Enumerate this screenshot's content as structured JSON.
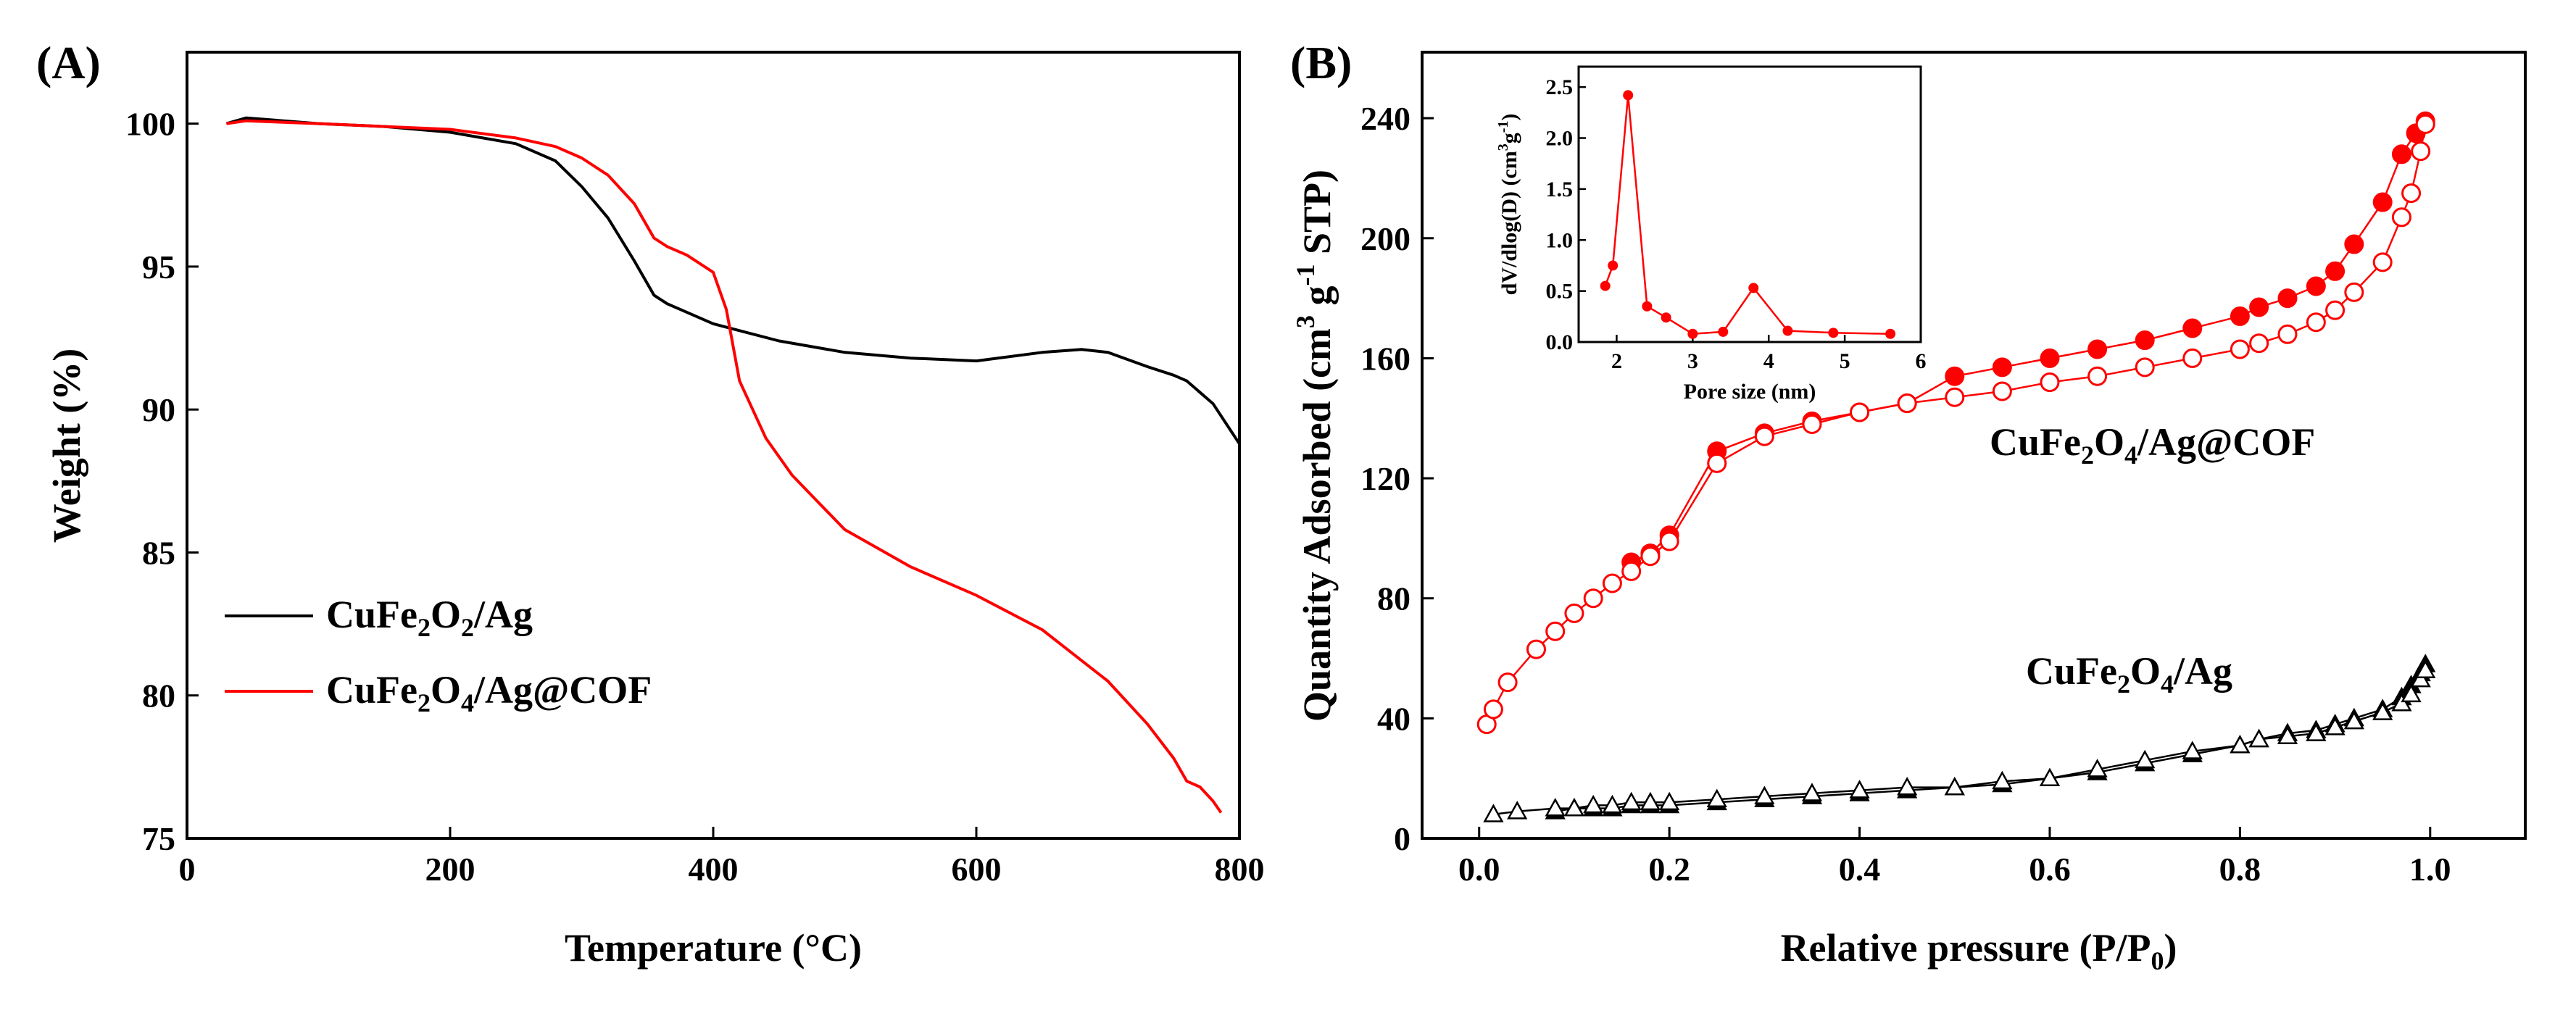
{
  "chart_data": [
    {
      "panel": "(A)",
      "type": "line",
      "xlabel": "Temperature (°C)",
      "ylabel": "Weight (%)",
      "xlim": [
        0,
        800
      ],
      "ylim": [
        75,
        102.5
      ],
      "xticks": [
        0,
        200,
        400,
        600,
        800
      ],
      "yticks": [
        75,
        80,
        85,
        90,
        95,
        100
      ],
      "legend_position": "bottom-left",
      "series": [
        {
          "name": "CuFe2O2/Ag",
          "name_parts": {
            "a": "CuFe",
            "sub1": "2",
            "b": "O",
            "sub2": "2",
            "c": "/Ag"
          },
          "color": "#000000",
          "x": [
            30,
            45,
            100,
            150,
            200,
            250,
            280,
            300,
            320,
            340,
            355,
            365,
            375,
            400,
            450,
            500,
            550,
            600,
            650,
            680,
            700,
            730,
            750,
            760,
            780,
            800
          ],
          "y": [
            100.0,
            100.2,
            100.0,
            99.9,
            99.7,
            99.3,
            98.7,
            97.8,
            96.7,
            95.2,
            94.0,
            93.7,
            93.5,
            93.0,
            92.4,
            92.0,
            91.8,
            91.7,
            92.0,
            92.1,
            92.0,
            91.5,
            91.2,
            91.0,
            90.2,
            88.8
          ]
        },
        {
          "name": "CuFe2O4/Ag@COF",
          "name_parts": {
            "a": "CuFe",
            "sub1": "2",
            "b": "O",
            "sub2": "4",
            "c": "/Ag@COF"
          },
          "color": "#ff0000",
          "x": [
            30,
            45,
            100,
            150,
            200,
            250,
            280,
            300,
            320,
            340,
            355,
            365,
            380,
            400,
            410,
            420,
            440,
            460,
            500,
            550,
            600,
            650,
            700,
            730,
            750,
            760,
            770,
            780,
            786
          ],
          "y": [
            100.0,
            100.1,
            100.0,
            99.9,
            99.8,
            99.5,
            99.2,
            98.8,
            98.2,
            97.2,
            96.0,
            95.7,
            95.4,
            94.8,
            93.5,
            91.0,
            89.0,
            87.7,
            85.8,
            84.5,
            83.5,
            82.3,
            80.5,
            79.0,
            77.8,
            77.0,
            76.8,
            76.3,
            75.9
          ]
        }
      ]
    },
    {
      "panel": "(B)",
      "type": "scatter",
      "xlabel": {
        "a": "Relative pressure (P/P",
        "sub": "0",
        "c": ")"
      },
      "ylabel": {
        "a": "Quantity Adsorbed (cm",
        "sup1": "3",
        "b": " g",
        "sup2": "-1",
        "c": " STP)"
      },
      "xlim": [
        -0.06,
        1.1
      ],
      "ylim": [
        0,
        262
      ],
      "xticks": [
        "0.0",
        "0.2",
        "0.4",
        "0.6",
        "0.8",
        "1.0"
      ],
      "xtick_values": [
        0.0,
        0.2,
        0.4,
        0.6,
        0.8,
        1.0
      ],
      "yticks": [
        0,
        40,
        80,
        120,
        160,
        200,
        240
      ],
      "series_labels": {
        "cof": {
          "a": "CuFe",
          "sub1": "2",
          "b": "O",
          "sub2": "4",
          "c": "/Ag@COF"
        },
        "ag": {
          "a": "CuFe",
          "sub1": "2",
          "b": "O",
          "sub2": "4",
          "c": "/Ag"
        }
      },
      "series": [
        {
          "name": "CuFe2O4/Ag@COF adsorption",
          "color": "#ff0000",
          "marker": "circle",
          "filled": true,
          "x": [
            0.16,
            0.18,
            0.2,
            0.25,
            0.3,
            0.35,
            0.4,
            0.45,
            0.5,
            0.55,
            0.6,
            0.65,
            0.7,
            0.75,
            0.8,
            0.82,
            0.85,
            0.88,
            0.9,
            0.92,
            0.95,
            0.97,
            0.985,
            0.995
          ],
          "y": [
            92,
            95,
            101,
            129,
            135,
            139,
            142,
            145,
            154,
            157,
            160,
            163,
            166,
            170,
            174,
            177,
            180,
            184,
            189,
            198,
            212,
            228,
            235,
            239
          ]
        },
        {
          "name": "CuFe2O4/Ag@COF desorption",
          "color": "#ff0000",
          "marker": "circle",
          "filled": false,
          "x": [
            0.008,
            0.015,
            0.03,
            0.06,
            0.08,
            0.1,
            0.12,
            0.14,
            0.16,
            0.18,
            0.2,
            0.25,
            0.3,
            0.35,
            0.4,
            0.45,
            0.5,
            0.55,
            0.6,
            0.65,
            0.7,
            0.75,
            0.8,
            0.82,
            0.85,
            0.88,
            0.9,
            0.92,
            0.95,
            0.97,
            0.98,
            0.99,
            0.995
          ],
          "y": [
            38,
            43,
            52,
            63,
            69,
            75,
            80,
            85,
            89,
            94,
            99,
            125,
            134,
            138,
            142,
            145,
            147,
            149,
            152,
            154,
            157,
            160,
            163,
            165,
            168,
            172,
            176,
            182,
            192,
            207,
            215,
            229,
            238
          ]
        },
        {
          "name": "CuFe2O4/Ag adsorption",
          "color": "#000000",
          "marker": "triangle",
          "filled": true,
          "x": [
            0.08,
            0.1,
            0.12,
            0.14,
            0.16,
            0.18,
            0.2,
            0.25,
            0.3,
            0.35,
            0.4,
            0.45,
            0.5,
            0.55,
            0.6,
            0.65,
            0.7,
            0.75,
            0.8,
            0.82,
            0.85,
            0.88,
            0.9,
            0.92,
            0.95,
            0.97,
            0.98,
            0.99,
            0.995
          ],
          "y": [
            9,
            10,
            10,
            10,
            11,
            11,
            11,
            12,
            13,
            14,
            15,
            16,
            17,
            18,
            20,
            22,
            25,
            28,
            31,
            33,
            35,
            36,
            38,
            40,
            43,
            47,
            51,
            55,
            58
          ]
        },
        {
          "name": "CuFe2O4/Ag desorption",
          "color": "#000000",
          "marker": "triangle",
          "filled": false,
          "x": [
            0.015,
            0.04,
            0.08,
            0.1,
            0.12,
            0.14,
            0.16,
            0.18,
            0.2,
            0.25,
            0.3,
            0.35,
            0.4,
            0.45,
            0.5,
            0.55,
            0.6,
            0.65,
            0.7,
            0.75,
            0.8,
            0.82,
            0.85,
            0.88,
            0.9,
            0.92,
            0.95,
            0.97,
            0.98,
            0.99,
            0.995
          ],
          "y": [
            8,
            9,
            10,
            10,
            11,
            11,
            12,
            12,
            12,
            13,
            14,
            15,
            16,
            17,
            17,
            19,
            20,
            23,
            26,
            29,
            31,
            33,
            34,
            35,
            37,
            39,
            42,
            45,
            48,
            53,
            56
          ]
        }
      ],
      "inset": {
        "type": "line",
        "xlabel": "Pore size (nm)",
        "ylabel": {
          "a": "dV/dlog(D) (cm",
          "sup1": "3",
          "b": "g",
          "sup2": "-1",
          "c": ")"
        },
        "xlim": [
          1.5,
          6
        ],
        "ylim": [
          0,
          2.7
        ],
        "xticks": [
          2,
          3,
          4,
          5,
          6
        ],
        "yticks": [
          "0.0",
          "0.5",
          "1.0",
          "1.5",
          "2.0",
          "2.5"
        ],
        "ytick_values": [
          0.0,
          0.5,
          1.0,
          1.5,
          2.0,
          2.5
        ],
        "color": "#ff0000",
        "x": [
          1.85,
          1.95,
          2.15,
          2.4,
          2.65,
          3.0,
          3.4,
          3.8,
          4.25,
          4.85,
          5.6
        ],
        "y": [
          0.55,
          0.75,
          2.42,
          0.35,
          0.24,
          0.08,
          0.1,
          0.53,
          0.11,
          0.09,
          0.08
        ]
      }
    }
  ]
}
